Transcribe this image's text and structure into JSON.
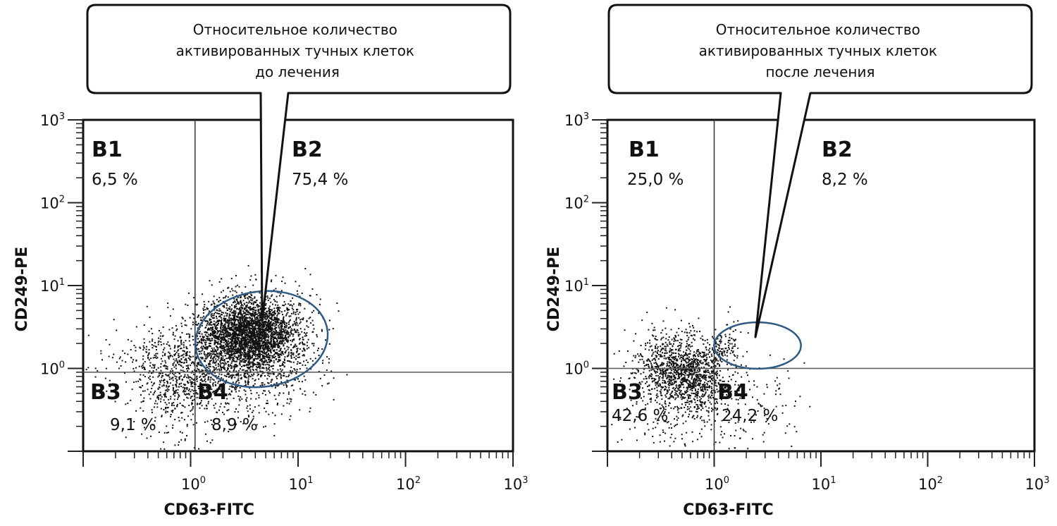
{
  "chart_data": [
    {
      "type": "scatter",
      "title": "Относительное количество активированных тучных клеток до лечения",
      "callout_lines": [
        "Относительное количество",
        "активированных тучных клеток",
        "до лечения"
      ],
      "xlabel": "CD63-FITC",
      "ylabel": "CD249-PE",
      "xscale": "log",
      "yscale": "log",
      "xlim": [
        0.1,
        1000
      ],
      "ylim": [
        0.1,
        1000
      ],
      "x_ticks": [
        {
          "base": "10",
          "exp": "0",
          "value": 1
        },
        {
          "base": "10",
          "exp": "1",
          "value": 10
        },
        {
          "base": "10",
          "exp": "2",
          "value": 100
        },
        {
          "base": "10",
          "exp": "3",
          "value": 1000
        }
      ],
      "y_ticks": [
        {
          "base": "10",
          "exp": "0",
          "value": 1
        },
        {
          "base": "10",
          "exp": "1",
          "value": 10
        },
        {
          "base": "10",
          "exp": "2",
          "value": 100
        },
        {
          "base": "10",
          "exp": "3",
          "value": 1000
        }
      ],
      "gate": {
        "x": 1.1,
        "y": 0.9
      },
      "quadrants": [
        {
          "id": "B1",
          "label": "B1",
          "percent": "6,5 %"
        },
        {
          "id": "B2",
          "label": "B2",
          "percent": "75,4 %"
        },
        {
          "id": "B3",
          "label": "B3",
          "percent": "9,1 %"
        },
        {
          "id": "B4",
          "label": "B4",
          "percent": "8,9 %"
        }
      ],
      "ellipse": {
        "cx": 4.5,
        "cy": 2.6,
        "x_range": [
          1.1,
          19
        ],
        "y_range": [
          0.6,
          8.5
        ],
        "color": "#2f5a84"
      },
      "clusters": [
        {
          "cx": 3.5,
          "cy": 2.5,
          "sx": 0.22,
          "sy": 0.22,
          "n": 2600
        },
        {
          "cx": 4.0,
          "cy": 2.2,
          "sx": 0.3,
          "sy": 0.33,
          "n": 900
        },
        {
          "cx": 0.9,
          "cy": 0.9,
          "sx": 0.28,
          "sy": 0.28,
          "n": 700
        },
        {
          "cx": 0.5,
          "cy": 1.2,
          "sx": 0.35,
          "sy": 0.25,
          "n": 120
        },
        {
          "cx": 0.8,
          "cy": 0.3,
          "sx": 0.2,
          "sy": 0.35,
          "n": 120
        },
        {
          "cx": 4.0,
          "cy": 0.6,
          "sx": 0.3,
          "sy": 0.3,
          "n": 180
        }
      ],
      "seed": 7,
      "point_color": "#111111"
    },
    {
      "type": "scatter",
      "title": "Относительное количество активированных тучных клеток после лечения",
      "callout_lines": [
        "Относительное количество",
        "активированных тучных клеток",
        "после лечения"
      ],
      "xlabel": "CD63-FITC",
      "ylabel": "CD249-PE",
      "xscale": "log",
      "yscale": "log",
      "xlim": [
        0.1,
        1000
      ],
      "ylim": [
        0.1,
        1000
      ],
      "x_ticks": [
        {
          "base": "10",
          "exp": "0",
          "value": 1
        },
        {
          "base": "10",
          "exp": "1",
          "value": 10
        },
        {
          "base": "10",
          "exp": "2",
          "value": 100
        },
        {
          "base": "10",
          "exp": "3",
          "value": 1000
        }
      ],
      "y_ticks": [
        {
          "base": "10",
          "exp": "0",
          "value": 1
        },
        {
          "base": "10",
          "exp": "1",
          "value": 10
        },
        {
          "base": "10",
          "exp": "2",
          "value": 100
        },
        {
          "base": "10",
          "exp": "3",
          "value": 1000
        }
      ],
      "gate": {
        "x": 1.0,
        "y": 1.0
      },
      "quadrants": [
        {
          "id": "B1",
          "label": "B1",
          "percent": "25,0 %"
        },
        {
          "id": "B2",
          "label": "B2",
          "percent": "8,2 %"
        },
        {
          "id": "B3",
          "label": "B3",
          "percent": "42,6 %"
        },
        {
          "id": "B4",
          "label": "B4",
          "percent": "24,2 %"
        }
      ],
      "ellipse": {
        "cx": 2.2,
        "cy": 1.8,
        "x_range": [
          1.0,
          6.5
        ],
        "y_range": [
          0.99,
          3.6
        ],
        "color": "#2f5a84"
      },
      "clusters": [
        {
          "cx": 0.5,
          "cy": 0.95,
          "sx": 0.22,
          "sy": 0.22,
          "n": 1200
        },
        {
          "cx": 0.7,
          "cy": 0.6,
          "sx": 0.15,
          "sy": 0.25,
          "n": 250
        },
        {
          "cx": 0.4,
          "cy": 0.2,
          "sx": 0.3,
          "sy": 0.15,
          "n": 90
        },
        {
          "cx": 1.3,
          "cy": 1.8,
          "sx": 0.08,
          "sy": 0.12,
          "n": 90
        },
        {
          "cx": 2.2,
          "cy": 0.35,
          "sx": 0.25,
          "sy": 0.3,
          "n": 110
        }
      ],
      "seed": 13,
      "point_color": "#111111"
    }
  ]
}
